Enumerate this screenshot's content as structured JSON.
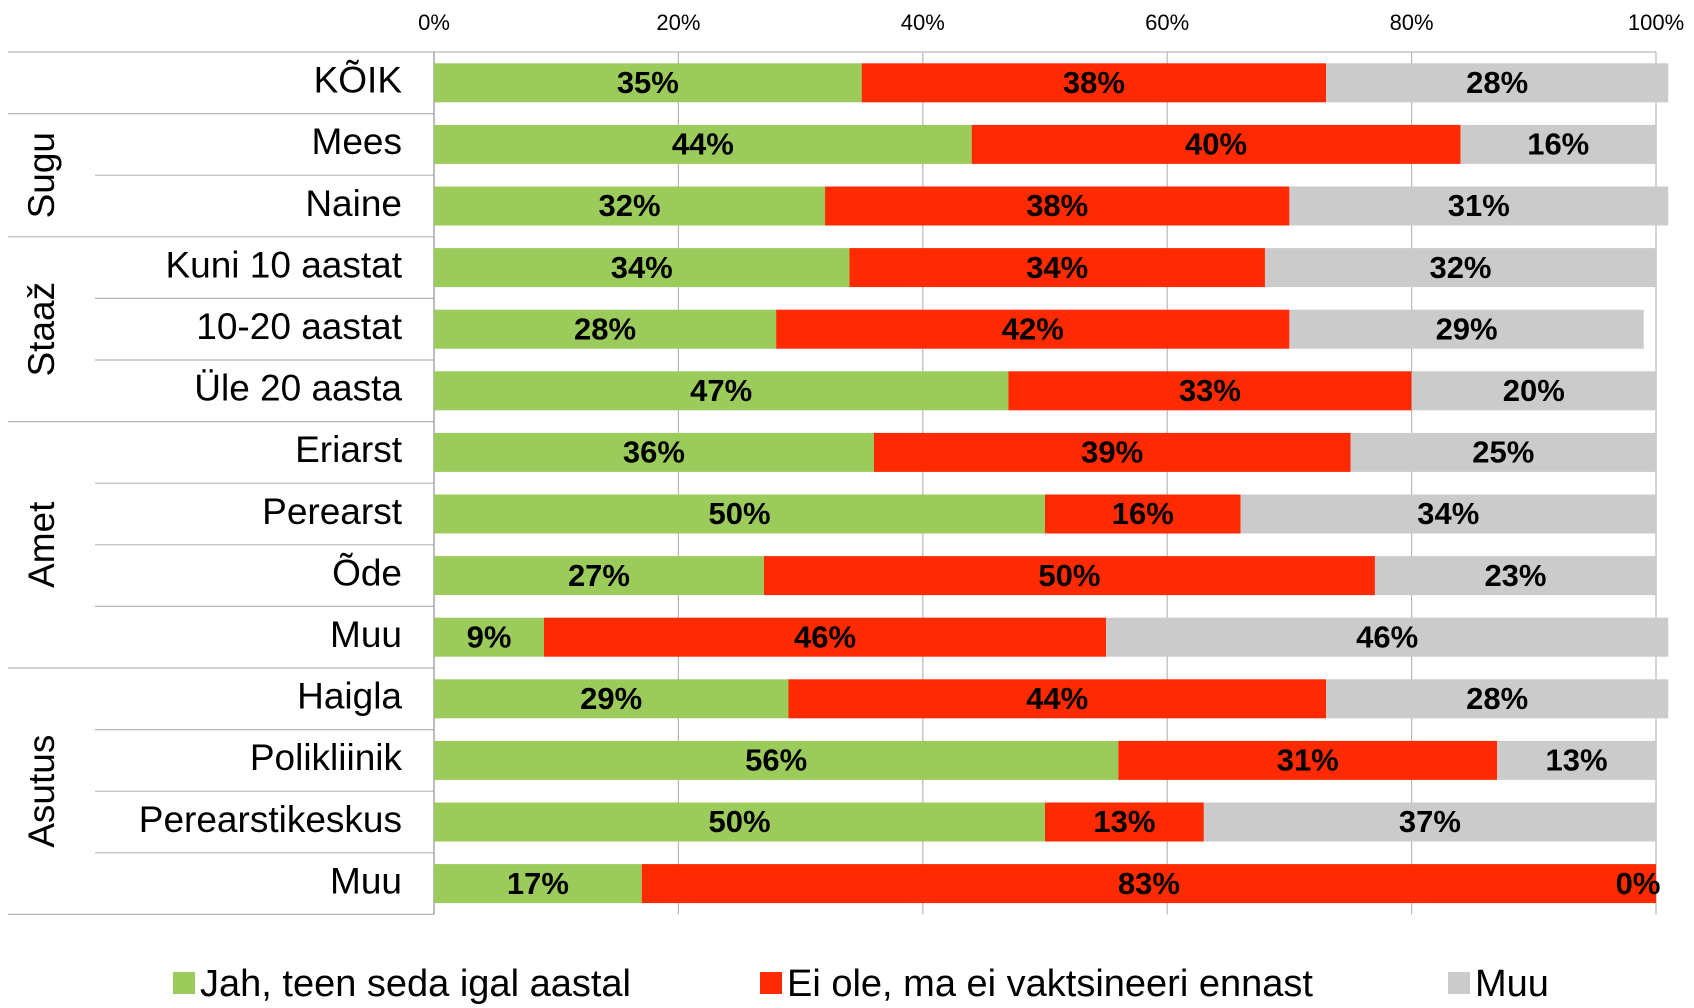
{
  "chart_data": {
    "type": "stacked-bar-horizontal",
    "categories": [
      "KÕIK",
      "Mees",
      "Naine",
      "Kuni 10 aastat",
      "10-20 aastat",
      "Üle 20 aasta",
      "Eriarst",
      "Perearst",
      "Õde",
      "Muu",
      "Haigla",
      "Polikliinik",
      "Perearstikeskus",
      "Muu"
    ],
    "groups": [
      {
        "name": "Sugu",
        "rows": [
          1,
          2
        ]
      },
      {
        "name": "Staaž",
        "rows": [
          3,
          5
        ]
      },
      {
        "name": "Amet",
        "rows": [
          6,
          9
        ]
      },
      {
        "name": "Asutus",
        "rows": [
          10,
          13
        ]
      }
    ],
    "series": [
      {
        "name": "Jah, teen seda igal aastal",
        "color": "#9bcb5a",
        "values": [
          35,
          44,
          32,
          34,
          28,
          47,
          36,
          50,
          27,
          9,
          29,
          56,
          50,
          17
        ],
        "value_labels": [
          "35%",
          "44%",
          "32%",
          "34%",
          "28%",
          "47%",
          "36%",
          "50%",
          "27%",
          "9%",
          "29%",
          "56%",
          "50%",
          "17%"
        ]
      },
      {
        "name": "Ei ole, ma ei vaktsineeri ennast",
        "color": "#ff2a00",
        "values": [
          38,
          40,
          38,
          34,
          42,
          33,
          39,
          16,
          50,
          46,
          44,
          31,
          13,
          83
        ],
        "value_labels": [
          "38%",
          "40%",
          "38%",
          "34%",
          "42%",
          "33%",
          "39%",
          "16%",
          "50%",
          "46%",
          "44%",
          "31%",
          "13%",
          "83%"
        ]
      },
      {
        "name": "Muu",
        "color": "#cbcbcb",
        "values": [
          28,
          16,
          31,
          32,
          29,
          20,
          25,
          34,
          23,
          46,
          28,
          13,
          37,
          0
        ],
        "value_labels": [
          "28%",
          "16%",
          "31%",
          "32%",
          "29%",
          "20%",
          "25%",
          "34%",
          "23%",
          "46%",
          "28%",
          "13%",
          "37%",
          "0%"
        ]
      }
    ],
    "xlim": [
      0,
      100
    ],
    "xticks": [
      {
        "value": 0,
        "label": "0%"
      },
      {
        "value": 20,
        "label": "20%"
      },
      {
        "value": 40,
        "label": "40%"
      },
      {
        "value": 60,
        "label": "60%"
      },
      {
        "value": 80,
        "label": "80%"
      },
      {
        "value": 100,
        "label": "100%"
      }
    ],
    "grid": true,
    "legend": "bottom"
  }
}
